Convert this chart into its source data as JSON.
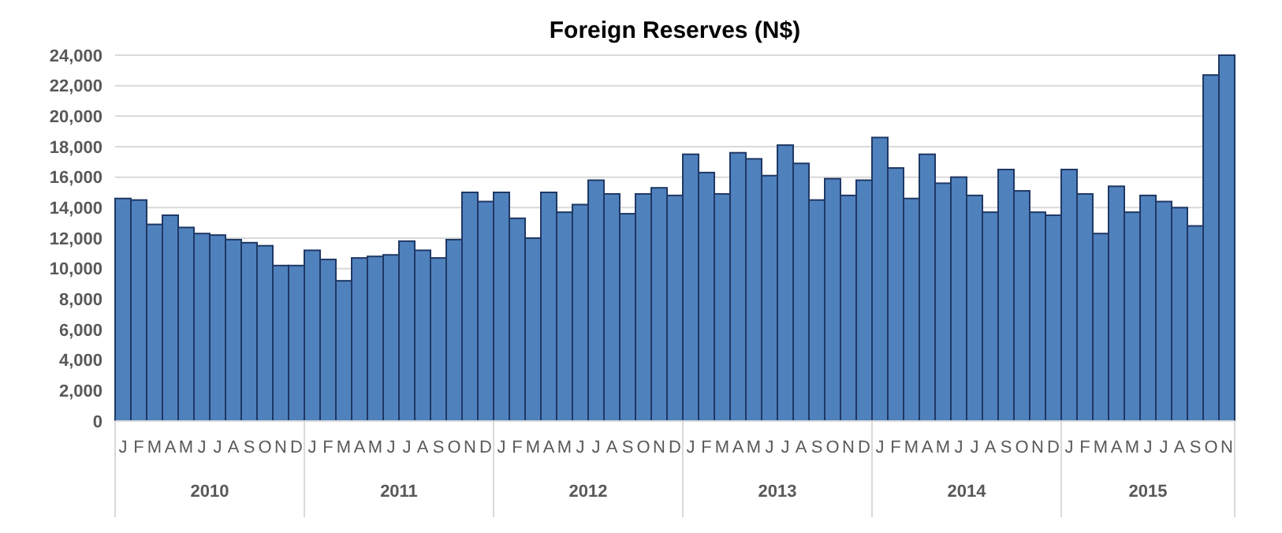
{
  "chart_data": {
    "type": "bar",
    "title": "Foreign Reserves (N$)",
    "categories": [
      "J",
      "F",
      "M",
      "A",
      "M",
      "J",
      "J",
      "A",
      "S",
      "O",
      "N",
      "D",
      "J",
      "F",
      "M",
      "A",
      "M",
      "J",
      "J",
      "A",
      "S",
      "O",
      "N",
      "D",
      "J",
      "F",
      "M",
      "A",
      "M",
      "J",
      "J",
      "A",
      "S",
      "O",
      "N",
      "D",
      "J",
      "F",
      "M",
      "A",
      "M",
      "J",
      "J",
      "A",
      "S",
      "O",
      "N",
      "D",
      "J",
      "F",
      "M",
      "A",
      "M",
      "J",
      "J",
      "A",
      "S",
      "O",
      "N",
      "D",
      "J",
      "F",
      "M",
      "A",
      "M",
      "J",
      "J",
      "A",
      "S",
      "O",
      "N"
    ],
    "values": [
      14600,
      14500,
      12900,
      13500,
      12700,
      12300,
      12200,
      11900,
      11700,
      11500,
      10200,
      10200,
      11200,
      10600,
      9200,
      10700,
      10800,
      10900,
      11800,
      11200,
      10700,
      11900,
      15000,
      14400,
      15000,
      13300,
      12000,
      15000,
      13700,
      14200,
      15800,
      14900,
      13600,
      14900,
      15300,
      14800,
      17500,
      16300,
      14900,
      17600,
      17200,
      16100,
      18100,
      16900,
      14500,
      15900,
      14800,
      15800,
      18600,
      16600,
      14600,
      17500,
      15600,
      16000,
      14800,
      13700,
      16500,
      15100,
      13700,
      13500,
      16500,
      14900,
      12300,
      15400,
      13700,
      14800,
      14400,
      14000,
      12800,
      22700,
      24000
    ],
    "color": "#4f81bd",
    "ylim": [
      0,
      24000
    ],
    "yticks": [
      {
        "value": 0,
        "label": "0"
      },
      {
        "value": 2000,
        "label": "2,000"
      },
      {
        "value": 4000,
        "label": "4,000"
      },
      {
        "value": 6000,
        "label": "6,000"
      },
      {
        "value": 8000,
        "label": "8,000"
      },
      {
        "value": 10000,
        "label": "10,000"
      },
      {
        "value": 12000,
        "label": "12,000"
      },
      {
        "value": 14000,
        "label": "14,000"
      },
      {
        "value": 16000,
        "label": "16,000"
      },
      {
        "value": 18000,
        "label": "18,000"
      },
      {
        "value": 20000,
        "label": "20,000"
      },
      {
        "value": 22000,
        "label": "22,000"
      },
      {
        "value": 24000,
        "label": "24,000"
      }
    ],
    "grid": "y",
    "annotations": [
      "2010",
      "2011",
      "2012",
      "2013",
      "2014",
      "2015"
    ]
  }
}
